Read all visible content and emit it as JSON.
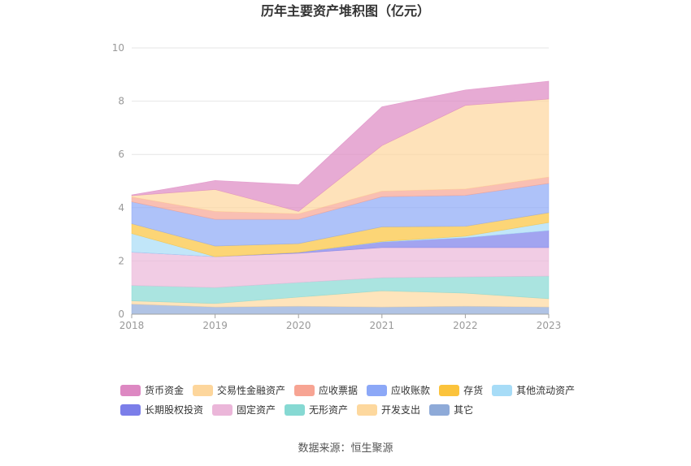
{
  "chart_data": {
    "type": "area",
    "stacked": true,
    "title": "历年主要资产堆积图（亿元）",
    "categories": [
      "2018",
      "2019",
      "2020",
      "2021",
      "2022",
      "2023"
    ],
    "ylim": [
      0,
      10
    ],
    "yticks": [
      0,
      2,
      4,
      6,
      8,
      10
    ],
    "xlabel": "",
    "ylabel": "",
    "grid": true,
    "legend_position": "bottom",
    "series": [
      {
        "name": "货币资金",
        "color": "#dd88c2",
        "values": [
          0.03,
          0.34,
          1.0,
          1.46,
          0.58,
          0.67
        ]
      },
      {
        "name": "交易性金融资产",
        "color": "#fdd69c",
        "values": [
          0.05,
          0.82,
          0.09,
          1.71,
          3.14,
          2.93
        ]
      },
      {
        "name": "应收票据",
        "color": "#f7a493",
        "values": [
          0.18,
          0.3,
          0.21,
          0.21,
          0.24,
          0.24
        ]
      },
      {
        "name": "应收账款",
        "color": "#8ca8f7",
        "values": [
          0.82,
          1.0,
          0.91,
          1.13,
          1.16,
          1.1
        ]
      },
      {
        "name": "存货",
        "color": "#fbc33c",
        "values": [
          0.37,
          0.4,
          0.33,
          0.55,
          0.37,
          0.37
        ]
      },
      {
        "name": "其他流动资产",
        "color": "#a7dcf7",
        "values": [
          0.7,
          0.0,
          0.0,
          0.02,
          0.06,
          0.3
        ]
      },
      {
        "name": "长期股权投资",
        "color": "#7b7ee9",
        "values": [
          0.0,
          0.0,
          0.03,
          0.21,
          0.37,
          0.64
        ]
      },
      {
        "name": "固定资产",
        "color": "#ebb6d9",
        "values": [
          1.25,
          1.16,
          1.1,
          1.13,
          1.1,
          1.07
        ]
      },
      {
        "name": "无形资产",
        "color": "#86d9d3",
        "values": [
          0.58,
          0.6,
          0.55,
          0.49,
          0.61,
          0.85
        ]
      },
      {
        "name": "开发支出",
        "color": "#fdd89e",
        "values": [
          0.12,
          0.13,
          0.34,
          0.61,
          0.49,
          0.31
        ]
      },
      {
        "name": "其它",
        "color": "#8eaad8",
        "values": [
          0.38,
          0.27,
          0.3,
          0.27,
          0.3,
          0.27
        ]
      }
    ]
  },
  "footer": {
    "source": "数据来源：恒生聚源"
  }
}
